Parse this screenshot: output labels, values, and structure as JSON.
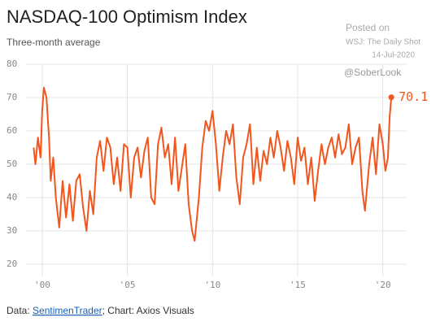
{
  "chart_data": {
    "type": "line",
    "title": "NASDAQ-100 Optimism Index",
    "subtitle": "Three-month average",
    "annotations": {
      "posted": "Posted on",
      "source_site": "WSJ: The Daily Shot",
      "date": "14-Jul-2020",
      "handle": "@SoberLook"
    },
    "source": {
      "prefix": "Data: ",
      "link": "SentimenTrader",
      "suffix": "; Chart: Axios Visuals"
    },
    "color": "#f2561d",
    "grid": true,
    "x": [
      1999.5,
      1999.6,
      1999.75,
      1999.9,
      2000.0,
      2000.1,
      2000.25,
      2000.4,
      2000.5,
      2000.65,
      2000.8,
      2001.0,
      2001.2,
      2001.4,
      2001.6,
      2001.8,
      2002.0,
      2002.2,
      2002.4,
      2002.6,
      2002.8,
      2003.0,
      2003.2,
      2003.4,
      2003.6,
      2003.8,
      2004.0,
      2004.2,
      2004.4,
      2004.6,
      2004.8,
      2005.0,
      2005.2,
      2005.4,
      2005.6,
      2005.8,
      2006.0,
      2006.2,
      2006.4,
      2006.6,
      2006.8,
      2007.0,
      2007.2,
      2007.4,
      2007.6,
      2007.8,
      2008.0,
      2008.2,
      2008.4,
      2008.6,
      2008.8,
      2008.95,
      2009.2,
      2009.4,
      2009.6,
      2009.8,
      2010.0,
      2010.2,
      2010.4,
      2010.6,
      2010.8,
      2011.0,
      2011.2,
      2011.4,
      2011.6,
      2011.8,
      2012.0,
      2012.2,
      2012.4,
      2012.6,
      2012.8,
      2013.0,
      2013.2,
      2013.4,
      2013.6,
      2013.8,
      2014.0,
      2014.2,
      2014.4,
      2014.6,
      2014.8,
      2015.0,
      2015.2,
      2015.4,
      2015.6,
      2015.8,
      2016.0,
      2016.2,
      2016.4,
      2016.6,
      2016.8,
      2017.0,
      2017.2,
      2017.4,
      2017.6,
      2017.8,
      2018.0,
      2018.2,
      2018.4,
      2018.6,
      2018.8,
      2018.95,
      2019.2,
      2019.4,
      2019.6,
      2019.8,
      2020.0,
      2020.15,
      2020.3,
      2020.4,
      2020.5
    ],
    "values": [
      55,
      50,
      58,
      52,
      66,
      73,
      70,
      58,
      45,
      52,
      40,
      31,
      45,
      34,
      44,
      33,
      45,
      47,
      37,
      30,
      42,
      35,
      52,
      57,
      48,
      58,
      55,
      44,
      52,
      42,
      56,
      55,
      40,
      52,
      55,
      46,
      54,
      58,
      40,
      38,
      56,
      61,
      52,
      56,
      44,
      58,
      42,
      49,
      56,
      38,
      30,
      27,
      40,
      55,
      63,
      60,
      66,
      56,
      42,
      52,
      60,
      56,
      62,
      46,
      38,
      52,
      56,
      62,
      44,
      55,
      45,
      54,
      50,
      58,
      52,
      60,
      55,
      48,
      57,
      52,
      44,
      58,
      51,
      55,
      44,
      52,
      39,
      48,
      56,
      50,
      55,
      58,
      52,
      59,
      53,
      55,
      62,
      50,
      55,
      58,
      42,
      36,
      50,
      58,
      47,
      62,
      56,
      48,
      52,
      64,
      70.1
    ],
    "xlim": [
      1999.05,
      2021.4
    ],
    "ylim": [
      20,
      80
    ],
    "yticks": [
      20,
      30,
      40,
      50,
      60,
      70,
      80
    ],
    "xticks": [
      {
        "value": 2000,
        "label": "'00"
      },
      {
        "value": 2005,
        "label": "'05"
      },
      {
        "value": 2010,
        "label": "'10"
      },
      {
        "value": 2015,
        "label": "'15"
      },
      {
        "value": 2020,
        "label": "'20"
      }
    ]
  }
}
